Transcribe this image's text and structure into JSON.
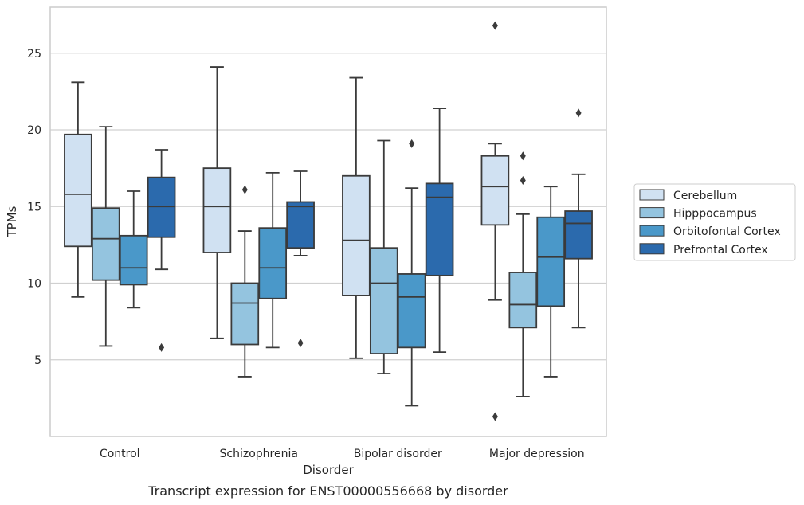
{
  "chart_data": {
    "type": "box",
    "title": "",
    "caption": "Transcript expression for ENST00000556668 by disorder",
    "xlabel": "Disorder",
    "ylabel": "TPMs",
    "ylim": [
      0,
      28
    ],
    "yticks": [
      "5",
      "10",
      "15",
      "20",
      "25"
    ],
    "grid": "horizontal",
    "legend_position": "right",
    "categories": [
      "Control",
      "Schizophrenia",
      "Bipolar disorder",
      "Major depression"
    ],
    "series": [
      {
        "name": "Cerebellum",
        "color": "#d0e1f2",
        "boxes": [
          {
            "whisker_low": 9.1,
            "q1": 12.4,
            "median": 15.8,
            "q3": 19.7,
            "whisker_high": 23.1,
            "outliers": []
          },
          {
            "whisker_low": 6.4,
            "q1": 12.0,
            "median": 15.0,
            "q3": 17.5,
            "whisker_high": 24.1,
            "outliers": []
          },
          {
            "whisker_low": 5.1,
            "q1": 9.2,
            "median": 12.8,
            "q3": 17.0,
            "whisker_high": 23.4,
            "outliers": []
          },
          {
            "whisker_low": 8.9,
            "q1": 13.8,
            "median": 16.3,
            "q3": 18.3,
            "whisker_high": 19.1,
            "outliers": [
              26.8,
              1.3
            ]
          }
        ]
      },
      {
        "name": "Hipppocampus",
        "color": "#94c4df",
        "boxes": [
          {
            "whisker_low": 5.9,
            "q1": 10.2,
            "median": 12.9,
            "q3": 14.9,
            "whisker_high": 20.2,
            "outliers": []
          },
          {
            "whisker_low": 3.9,
            "q1": 6.0,
            "median": 8.7,
            "q3": 10.0,
            "whisker_high": 13.4,
            "outliers": [
              16.1
            ]
          },
          {
            "whisker_low": 4.1,
            "q1": 5.4,
            "median": 10.0,
            "q3": 12.3,
            "whisker_high": 19.3,
            "outliers": []
          },
          {
            "whisker_low": 2.6,
            "q1": 7.1,
            "median": 8.6,
            "q3": 10.7,
            "whisker_high": 14.5,
            "outliers": [
              18.3,
              16.7
            ]
          }
        ]
      },
      {
        "name": "Orbitofontal Cortex",
        "color": "#4a98c9",
        "boxes": [
          {
            "whisker_low": 8.4,
            "q1": 9.9,
            "median": 11.0,
            "q3": 13.1,
            "whisker_high": 16.0,
            "outliers": []
          },
          {
            "whisker_low": 5.8,
            "q1": 9.0,
            "median": 11.0,
            "q3": 13.6,
            "whisker_high": 17.2,
            "outliers": []
          },
          {
            "whisker_low": 2.0,
            "q1": 5.8,
            "median": 9.1,
            "q3": 10.6,
            "whisker_high": 16.2,
            "outliers": [
              19.1
            ]
          },
          {
            "whisker_low": 3.9,
            "q1": 8.5,
            "median": 11.7,
            "q3": 14.3,
            "whisker_high": 16.3,
            "outliers": []
          }
        ]
      },
      {
        "name": "Prefrontal Cortex",
        "color": "#2b6aad",
        "boxes": [
          {
            "whisker_low": 10.9,
            "q1": 13.0,
            "median": 15.0,
            "q3": 16.9,
            "whisker_high": 18.7,
            "outliers": [
              5.8
            ]
          },
          {
            "whisker_low": 11.8,
            "q1": 12.3,
            "median": 15.0,
            "q3": 15.3,
            "whisker_high": 17.3,
            "outliers": [
              6.1
            ]
          },
          {
            "whisker_low": 5.5,
            "q1": 10.5,
            "median": 15.6,
            "q3": 16.5,
            "whisker_high": 21.4,
            "outliers": []
          },
          {
            "whisker_low": 7.1,
            "q1": 11.6,
            "median": 13.9,
            "q3": 14.7,
            "whisker_high": 17.1,
            "outliers": [
              21.1
            ]
          }
        ]
      }
    ]
  }
}
